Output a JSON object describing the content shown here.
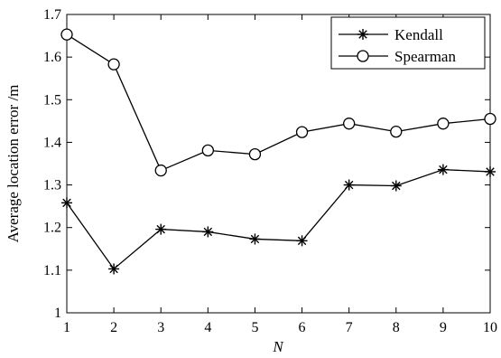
{
  "chart_data": {
    "type": "line",
    "title": "",
    "xlabel": "N",
    "ylabel": "Average location error /m",
    "x": [
      1,
      2,
      3,
      4,
      5,
      6,
      7,
      8,
      9,
      10
    ],
    "xlim": [
      1,
      10
    ],
    "ylim": [
      1.0,
      1.7
    ],
    "xticks": [
      "1",
      "2",
      "3",
      "4",
      "5",
      "6",
      "7",
      "8",
      "9",
      "10"
    ],
    "yticks": [
      "1",
      "1.1",
      "1.2",
      "1.3",
      "1.4",
      "1.5",
      "1.6",
      "1.7"
    ],
    "grid": false,
    "legend_position": "top-right",
    "series": [
      {
        "name": "Kendall",
        "marker": "asterisk",
        "color": "#000000",
        "values": [
          1.258,
          1.103,
          1.196,
          1.19,
          1.173,
          1.169,
          1.3,
          1.298,
          1.336,
          1.331
        ]
      },
      {
        "name": "Spearman",
        "marker": "circle",
        "color": "#000000",
        "values": [
          1.653,
          1.583,
          1.334,
          1.381,
          1.372,
          1.424,
          1.444,
          1.425,
          1.444,
          1.455
        ]
      }
    ]
  }
}
